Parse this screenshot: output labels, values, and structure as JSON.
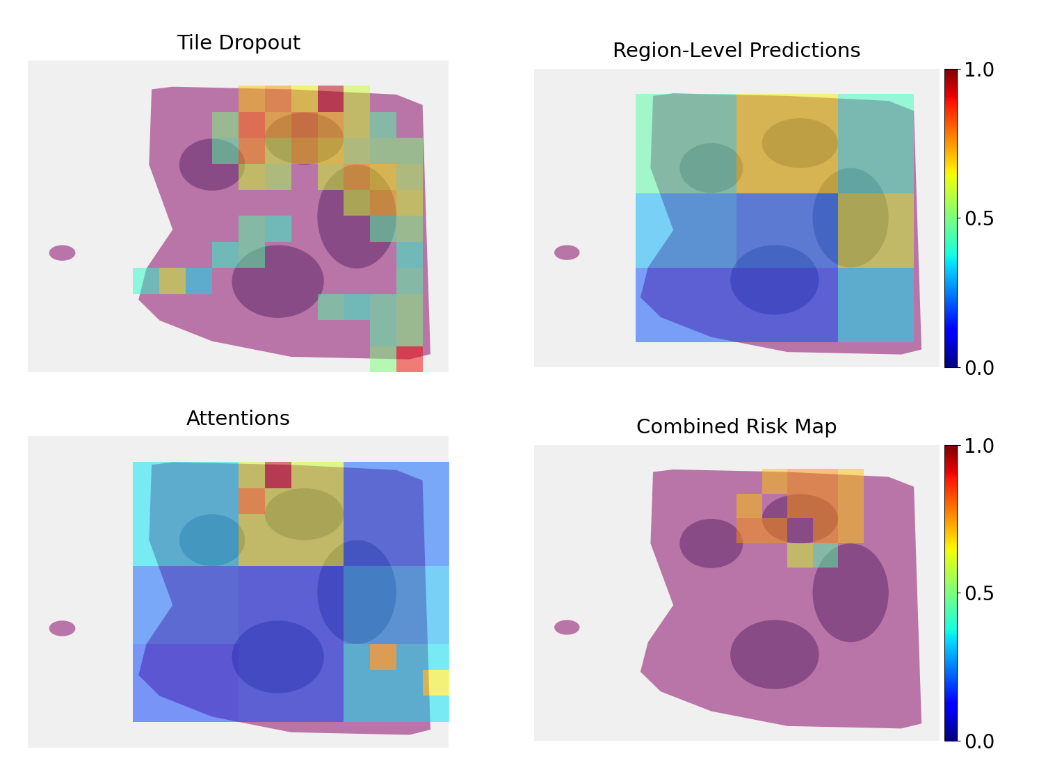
{
  "chart_data": [
    {
      "type": "heatmap",
      "title": "Tile Dropout",
      "color": "jet",
      "tick_labels": false,
      "color_range": [
        0.0,
        1.0
      ],
      "cells": [
        [
          null,
          null,
          null,
          null,
          null,
          null,
          null,
          null,
          null,
          null,
          null,
          null,
          null,
          null,
          null,
          null
        ],
        [
          null,
          null,
          null,
          null,
          null,
          null,
          null,
          null,
          0.7,
          0.75,
          0.65,
          0.95,
          0.6,
          null,
          null,
          null
        ],
        [
          null,
          null,
          null,
          null,
          null,
          null,
          null,
          0.5,
          0.8,
          0.7,
          0.75,
          0.7,
          0.6,
          0.45,
          null,
          null
        ],
        [
          null,
          null,
          null,
          null,
          null,
          null,
          null,
          0.45,
          0.75,
          0.6,
          0.7,
          0.65,
          0.55,
          0.5,
          0.5,
          null
        ],
        [
          null,
          null,
          null,
          null,
          null,
          null,
          null,
          null,
          0.6,
          0.55,
          null,
          0.6,
          0.7,
          0.65,
          0.55,
          null
        ],
        [
          null,
          null,
          null,
          null,
          null,
          null,
          null,
          null,
          null,
          null,
          null,
          null,
          0.6,
          0.7,
          0.6,
          null
        ],
        [
          null,
          null,
          null,
          null,
          null,
          null,
          null,
          null,
          0.45,
          0.4,
          null,
          null,
          null,
          0.45,
          0.5,
          null
        ],
        [
          null,
          null,
          null,
          null,
          null,
          null,
          null,
          0.4,
          0.45,
          null,
          null,
          null,
          null,
          null,
          0.4,
          null
        ],
        [
          null,
          null,
          null,
          null,
          0.4,
          0.6,
          0.35,
          null,
          null,
          null,
          null,
          null,
          null,
          null,
          0.45,
          null
        ],
        [
          null,
          null,
          null,
          null,
          null,
          null,
          null,
          null,
          null,
          null,
          null,
          0.45,
          0.4,
          0.45,
          0.5,
          null
        ],
        [
          null,
          null,
          null,
          null,
          null,
          null,
          null,
          null,
          null,
          null,
          null,
          null,
          null,
          0.45,
          0.5,
          null
        ],
        [
          null,
          null,
          null,
          null,
          null,
          null,
          null,
          null,
          null,
          null,
          null,
          null,
          null,
          0.5,
          0.9,
          null
        ]
      ]
    },
    {
      "type": "heatmap",
      "title": "Region-Level Predictions",
      "color": "jet",
      "tick_labels": false,
      "color_range": [
        0.0,
        1.0
      ],
      "colorbar_ticks": [
        0.0,
        0.5,
        1.0
      ],
      "cells": [
        [
          null,
          null,
          null,
          null,
          null,
          null,
          null,
          null,
          null,
          null,
          null,
          null,
          null,
          null,
          null,
          null
        ],
        [
          null,
          null,
          null,
          null,
          0.45,
          0.45,
          0.45,
          0.45,
          0.65,
          0.65,
          0.65,
          0.65,
          0.42,
          0.42,
          0.42,
          null
        ],
        [
          null,
          null,
          null,
          null,
          0.45,
          0.45,
          0.45,
          0.45,
          0.65,
          0.65,
          0.65,
          0.65,
          0.42,
          0.42,
          0.42,
          null
        ],
        [
          null,
          null,
          null,
          null,
          0.45,
          0.45,
          0.45,
          0.45,
          0.65,
          0.65,
          0.65,
          0.65,
          0.42,
          0.42,
          0.42,
          null
        ],
        [
          null,
          null,
          null,
          null,
          0.45,
          0.45,
          0.45,
          0.45,
          0.65,
          0.65,
          0.65,
          0.65,
          0.42,
          0.42,
          0.42,
          null
        ],
        [
          null,
          null,
          null,
          null,
          0.3,
          0.3,
          0.3,
          0.3,
          0.25,
          0.25,
          0.25,
          0.25,
          0.6,
          0.6,
          0.6,
          null
        ],
        [
          null,
          null,
          null,
          null,
          0.3,
          0.3,
          0.3,
          0.3,
          0.25,
          0.25,
          0.25,
          0.25,
          0.6,
          0.6,
          0.6,
          null
        ],
        [
          null,
          null,
          null,
          null,
          0.3,
          0.3,
          0.3,
          0.3,
          0.25,
          0.25,
          0.25,
          0.25,
          0.6,
          0.6,
          0.6,
          null
        ],
        [
          null,
          null,
          null,
          null,
          0.2,
          0.2,
          0.2,
          0.2,
          0.2,
          0.2,
          0.2,
          0.2,
          0.35,
          0.35,
          0.35,
          null
        ],
        [
          null,
          null,
          null,
          null,
          0.2,
          0.2,
          0.2,
          0.2,
          0.2,
          0.2,
          0.2,
          0.2,
          0.35,
          0.35,
          0.35,
          null
        ],
        [
          null,
          null,
          null,
          null,
          0.2,
          0.2,
          0.2,
          0.2,
          0.2,
          0.2,
          0.2,
          0.2,
          0.35,
          0.35,
          0.35,
          null
        ],
        [
          null,
          null,
          null,
          null,
          null,
          null,
          null,
          null,
          null,
          null,
          null,
          null,
          null,
          null,
          null,
          null
        ]
      ]
    },
    {
      "type": "heatmap",
      "title": "Attentions",
      "color": "jet",
      "tick_labels": false,
      "color_range": [
        0.0,
        1.0
      ],
      "cells": [
        [
          null,
          null,
          null,
          null,
          null,
          null,
          null,
          null,
          null,
          null,
          null,
          null,
          null,
          null,
          null,
          null
        ],
        [
          null,
          null,
          null,
          null,
          0.35,
          0.35,
          0.35,
          0.35,
          0.6,
          0.95,
          0.6,
          0.6,
          0.22,
          0.22,
          0.22,
          0.22
        ],
        [
          null,
          null,
          null,
          null,
          0.35,
          0.35,
          0.35,
          0.35,
          0.75,
          0.6,
          0.6,
          0.6,
          0.22,
          0.22,
          0.22,
          0.22
        ],
        [
          null,
          null,
          null,
          null,
          0.35,
          0.35,
          0.35,
          0.35,
          0.6,
          0.6,
          0.6,
          0.6,
          0.22,
          0.22,
          0.22,
          0.22
        ],
        [
          null,
          null,
          null,
          null,
          0.35,
          0.35,
          0.35,
          0.35,
          0.6,
          0.6,
          0.6,
          0.6,
          0.22,
          0.22,
          0.22,
          0.22
        ],
        [
          null,
          null,
          null,
          null,
          0.22,
          0.22,
          0.22,
          0.22,
          0.2,
          0.2,
          0.2,
          0.2,
          0.3,
          0.3,
          0.3,
          0.3
        ],
        [
          null,
          null,
          null,
          null,
          0.22,
          0.22,
          0.22,
          0.22,
          0.2,
          0.2,
          0.2,
          0.2,
          0.3,
          0.3,
          0.3,
          0.3
        ],
        [
          null,
          null,
          null,
          null,
          0.22,
          0.22,
          0.22,
          0.22,
          0.2,
          0.2,
          0.2,
          0.2,
          0.3,
          0.3,
          0.3,
          0.3
        ],
        [
          null,
          null,
          null,
          null,
          0.18,
          0.18,
          0.18,
          0.18,
          0.2,
          0.2,
          0.2,
          0.2,
          0.35,
          0.7,
          0.35,
          0.35
        ],
        [
          null,
          null,
          null,
          null,
          0.18,
          0.18,
          0.18,
          0.18,
          0.2,
          0.2,
          0.2,
          0.2,
          0.35,
          0.35,
          0.35,
          0.65
        ],
        [
          null,
          null,
          null,
          null,
          0.18,
          0.18,
          0.18,
          0.18,
          0.2,
          0.2,
          0.2,
          0.2,
          0.35,
          0.35,
          0.35,
          0.35
        ],
        [
          null,
          null,
          null,
          null,
          null,
          null,
          null,
          null,
          null,
          null,
          null,
          null,
          null,
          null,
          null,
          null
        ]
      ]
    },
    {
      "type": "heatmap",
      "title": "Combined Risk Map",
      "color": "jet",
      "tick_labels": false,
      "color_range": [
        0.0,
        1.0
      ],
      "colorbar_ticks": [
        0.0,
        0.5,
        1.0
      ],
      "cells": [
        [
          null,
          null,
          null,
          null,
          null,
          null,
          null,
          null,
          null,
          null,
          null,
          null,
          null,
          null,
          null,
          null
        ],
        [
          null,
          null,
          null,
          null,
          null,
          null,
          null,
          null,
          null,
          0.7,
          0.75,
          0.75,
          0.7,
          null,
          null,
          null
        ],
        [
          null,
          null,
          null,
          null,
          null,
          null,
          null,
          null,
          0.7,
          null,
          0.75,
          0.75,
          0.7,
          null,
          null,
          null
        ],
        [
          null,
          null,
          null,
          null,
          null,
          null,
          null,
          null,
          0.75,
          0.75,
          null,
          0.75,
          0.7,
          null,
          null,
          null
        ],
        [
          null,
          null,
          null,
          null,
          null,
          null,
          null,
          null,
          null,
          null,
          0.6,
          0.45,
          null,
          null,
          null,
          null
        ],
        [
          null,
          null,
          null,
          null,
          null,
          null,
          null,
          null,
          null,
          null,
          null,
          null,
          null,
          null,
          null,
          null
        ],
        [
          null,
          null,
          null,
          null,
          null,
          null,
          null,
          null,
          null,
          null,
          null,
          null,
          null,
          null,
          null,
          null
        ],
        [
          null,
          null,
          null,
          null,
          null,
          null,
          null,
          null,
          null,
          null,
          null,
          null,
          null,
          null,
          null,
          null
        ],
        [
          null,
          null,
          null,
          null,
          null,
          null,
          null,
          null,
          null,
          null,
          null,
          null,
          null,
          null,
          null,
          null
        ],
        [
          null,
          null,
          null,
          null,
          null,
          null,
          null,
          null,
          null,
          null,
          null,
          null,
          null,
          null,
          null,
          null
        ],
        [
          null,
          null,
          null,
          null,
          null,
          null,
          null,
          null,
          null,
          null,
          null,
          null,
          null,
          null,
          null,
          null
        ],
        [
          null,
          null,
          null,
          null,
          null,
          null,
          null,
          null,
          null,
          null,
          null,
          null,
          null,
          null,
          null,
          null
        ]
      ]
    }
  ]
}
